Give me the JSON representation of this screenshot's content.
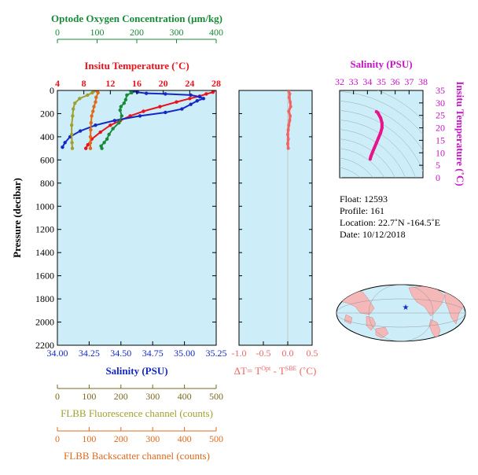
{
  "chart_data": [
    {
      "type": "line",
      "axes": {
        "oxygen": {
          "label": "Optode Oxygen Concentration (µm/kg)",
          "ticks": [
            "0",
            "100",
            "200",
            "300",
            "400"
          ],
          "range": [
            0,
            400
          ],
          "color": "#1a8a3a"
        },
        "temperature": {
          "label": "Insitu Temperature (˚C)",
          "ticks": [
            "4",
            "8",
            "12",
            "16",
            "20",
            "24",
            "28"
          ],
          "range": [
            4,
            28
          ],
          "color": "#e8141c"
        },
        "pressure": {
          "label": "Pressure (decibar)",
          "ticks": [
            "0",
            "200",
            "400",
            "600",
            "800",
            "1000",
            "1200",
            "1400",
            "1600",
            "1800",
            "2000",
            "2200"
          ],
          "range": [
            0,
            2200
          ],
          "inverted": true
        },
        "salinity": {
          "label": "Salinity (PSU)",
          "ticks": [
            "34.00",
            "34.25",
            "34.50",
            "34.75",
            "35.00",
            "35.25"
          ],
          "range": [
            34.0,
            35.25
          ],
          "color": "#1428c8"
        },
        "fluorescence": {
          "label": "FLBB Fluorescence channel (counts)",
          "ticks": [
            "0",
            "100",
            "200",
            "300",
            "400",
            "500"
          ],
          "range": [
            0,
            500
          ],
          "color": "#a0a030"
        },
        "backscatter": {
          "label": "FLBB Backscatter channel (counts)",
          "ticks": [
            "0",
            "100",
            "200",
            "300",
            "400",
            "500"
          ],
          "range": [
            0,
            500
          ],
          "color": "#e06a1c"
        }
      },
      "series": [
        {
          "key": "temperature",
          "color": "#e8141c",
          "points": [
            [
              27.6,
              5
            ],
            [
              27.5,
              15
            ],
            [
              26.5,
              30
            ],
            [
              25.5,
              50
            ],
            [
              24.0,
              70
            ],
            [
              22.0,
              100
            ],
            [
              19.5,
              140
            ],
            [
              17.0,
              180
            ],
            [
              15.0,
              220
            ],
            [
              13.5,
              260
            ],
            [
              12.0,
              300
            ],
            [
              10.5,
              360
            ],
            [
              9.2,
              420
            ],
            [
              8.6,
              470
            ],
            [
              8.3,
              500
            ]
          ]
        },
        {
          "key": "salinity",
          "color": "#1428c8",
          "points": [
            [
              34.6,
              5
            ],
            [
              34.63,
              15
            ],
            [
              34.7,
              25
            ],
            [
              34.85,
              30
            ],
            [
              35.05,
              40
            ],
            [
              35.12,
              55
            ],
            [
              35.15,
              70
            ],
            [
              35.1,
              90
            ],
            [
              35.05,
              120
            ],
            [
              34.98,
              160
            ],
            [
              34.85,
              190
            ],
            [
              34.65,
              220
            ],
            [
              34.45,
              260
            ],
            [
              34.3,
              300
            ],
            [
              34.18,
              350
            ],
            [
              34.1,
              400
            ],
            [
              34.06,
              450
            ],
            [
              34.04,
              490
            ]
          ]
        },
        {
          "key": "oxygen",
          "color": "#1a8a3a",
          "points": [
            [
              185,
              5
            ],
            [
              187,
              20
            ],
            [
              175,
              40
            ],
            [
              172,
              80
            ],
            [
              168,
              110
            ],
            [
              160,
              140
            ],
            [
              158,
              170
            ],
            [
              162,
              220
            ],
            [
              155,
              280
            ],
            [
              140,
              330
            ],
            [
              130,
              380
            ],
            [
              125,
              420
            ],
            [
              118,
              450
            ],
            [
              110,
              480
            ],
            [
              112,
              500
            ]
          ]
        },
        {
          "key": "fluorescence",
          "color": "#a0a030",
          "points": [
            [
              115,
              5
            ],
            [
              110,
              20
            ],
            [
              95,
              40
            ],
            [
              70,
              70
            ],
            [
              55,
              110
            ],
            [
              50,
              160
            ],
            [
              48,
              220
            ],
            [
              45,
              300
            ],
            [
              45,
              380
            ],
            [
              46,
              450
            ],
            [
              47,
              500
            ]
          ]
        },
        {
          "key": "backscatter",
          "color": "#e06a1c",
          "points": [
            [
              125,
              5
            ],
            [
              128,
              20
            ],
            [
              122,
              60
            ],
            [
              120,
              100
            ],
            [
              115,
              140
            ],
            [
              112,
              180
            ],
            [
              108,
              220
            ],
            [
              106,
              280
            ],
            [
              105,
              340
            ],
            [
              104,
              400
            ],
            [
              104,
              450
            ],
            [
              104,
              500
            ]
          ]
        }
      ],
      "grid": false
    },
    {
      "type": "scatter",
      "axes": {
        "dt": {
          "label_prefix": "ΔT= T",
          "sup1": "Opt",
          "label_mid": " - T",
          "sup2": "SBE",
          "label_suffix": " (˚C)",
          "ticks": [
            "-1.0",
            "-0.5",
            "0.0",
            "0.5"
          ],
          "range": [
            -1.0,
            0.5
          ],
          "color": "#f06464"
        }
      },
      "series": [
        {
          "key": "dT",
          "color": "#f06464",
          "points": [
            [
              0.02,
              5
            ],
            [
              0.04,
              30
            ],
            [
              0.03,
              60
            ],
            [
              0.05,
              100
            ],
            [
              0.06,
              140
            ],
            [
              0.02,
              180
            ],
            [
              0.05,
              220
            ],
            [
              0.04,
              260
            ],
            [
              0.02,
              300
            ],
            [
              0.01,
              340
            ],
            [
              0.0,
              380
            ],
            [
              0.01,
              420
            ],
            [
              0.0,
              460
            ],
            [
              0.01,
              500
            ]
          ]
        }
      ]
    },
    {
      "type": "line",
      "title": "Salinity (PSU)",
      "axes": {
        "salinity": {
          "ticks": [
            "32",
            "33",
            "34",
            "35",
            "36",
            "37",
            "38"
          ],
          "range": [
            32,
            38
          ],
          "color": "#c814c8"
        },
        "temperature": {
          "label": "Insitu Temperature (˚C)",
          "ticks": [
            "0",
            "5",
            "10",
            "15",
            "20",
            "25",
            "30",
            "35"
          ],
          "range": [
            0,
            35
          ],
          "color": "#c814c8"
        }
      },
      "series": [
        {
          "key": "ts",
          "color": "#e8148c",
          "points": [
            [
              34.65,
              26.5
            ],
            [
              34.75,
              26
            ],
            [
              34.95,
              24
            ],
            [
              35.05,
              22
            ],
            [
              35.05,
              20
            ],
            [
              34.95,
              18
            ],
            [
              34.8,
              16
            ],
            [
              34.65,
              14
            ],
            [
              34.5,
              12
            ],
            [
              34.35,
              10
            ],
            [
              34.25,
              8.5
            ],
            [
              34.2,
              7.5
            ]
          ]
        }
      ]
    }
  ],
  "info": {
    "float": "Float:  12593",
    "profile": "Profile:  161",
    "location": "Location:  22.7˚N  -164.5˚E",
    "date": "Date:  10/12/2018"
  },
  "colors": {
    "plot_bg": "#cdeef8",
    "axis_dark": "#7a6a20"
  }
}
